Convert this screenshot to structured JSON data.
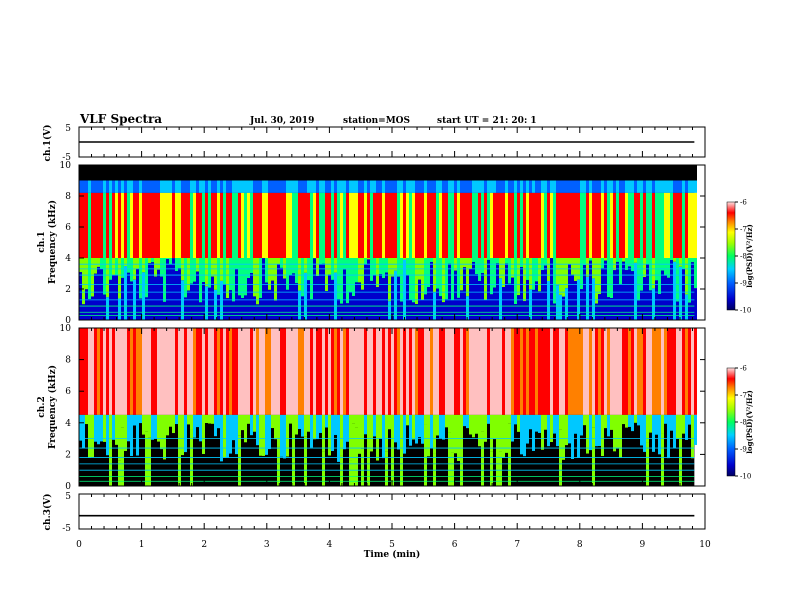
{
  "header": {
    "title": "VLF Spectra",
    "date": "Jul. 30, 2019",
    "station": "station=MOS",
    "start": "start UT =  21: 20: 1"
  },
  "colors": {
    "spectrum": [
      "#000000",
      "#0000cc",
      "#0060ff",
      "#00c8ff",
      "#00ff80",
      "#80ff00",
      "#ffff00",
      "#ff8000",
      "#ff0000",
      "#ffc0c0",
      "#ffffff"
    ]
  },
  "chart_data": [
    {
      "type": "line",
      "panel": "ch1-waveform",
      "ylabel": "ch.1(V)",
      "ylim": [
        -5,
        5
      ],
      "y_tick_labels": [
        "5",
        "-5"
      ],
      "series": [
        {
          "x": [
            0,
            9.83
          ],
          "values": [
            0,
            0
          ]
        }
      ]
    },
    {
      "type": "heatmap",
      "panel": "ch1-spectrogram",
      "ylabel": "ch.1\nFrequency (kHz)",
      "ylim": [
        0,
        10
      ],
      "y_tick_labels": [
        "0",
        "2",
        "4",
        "6",
        "8",
        "10"
      ],
      "xlim": [
        0,
        10
      ],
      "colorbar": {
        "label": "log(PSD)(V²/Hz)",
        "range": [
          -10,
          -6
        ],
        "tick_labels": [
          "-6",
          "-7",
          "-8",
          "-9",
          "-10"
        ]
      }
    },
    {
      "type": "heatmap",
      "panel": "ch2-spectrogram",
      "ylabel": "ch.2\nFrequency (kHz)",
      "ylim": [
        0,
        10
      ],
      "y_tick_labels": [
        "0",
        "2",
        "4",
        "6",
        "8",
        "10"
      ],
      "xlim": [
        0,
        10
      ],
      "colorbar": {
        "label": "log(PSD)(V²/Hz)",
        "range": [
          -10,
          -6
        ],
        "tick_labels": [
          "-6",
          "-7",
          "-8",
          "-9",
          "-10"
        ]
      }
    },
    {
      "type": "line",
      "panel": "ch3-waveform",
      "ylabel": "ch.3(V)",
      "ylim": [
        -5,
        5
      ],
      "y_tick_labels": [
        "5",
        "-5"
      ],
      "series": [
        {
          "x": [
            0,
            9.83
          ],
          "values": [
            -1.2,
            -1.2
          ]
        }
      ]
    },
    {
      "type": "axis",
      "xlabel": "Time (min)",
      "xlim": [
        0,
        10
      ],
      "x_tick_labels": [
        "0",
        "1",
        "2",
        "3",
        "4",
        "5",
        "6",
        "7",
        "8",
        "9",
        "10"
      ]
    }
  ]
}
